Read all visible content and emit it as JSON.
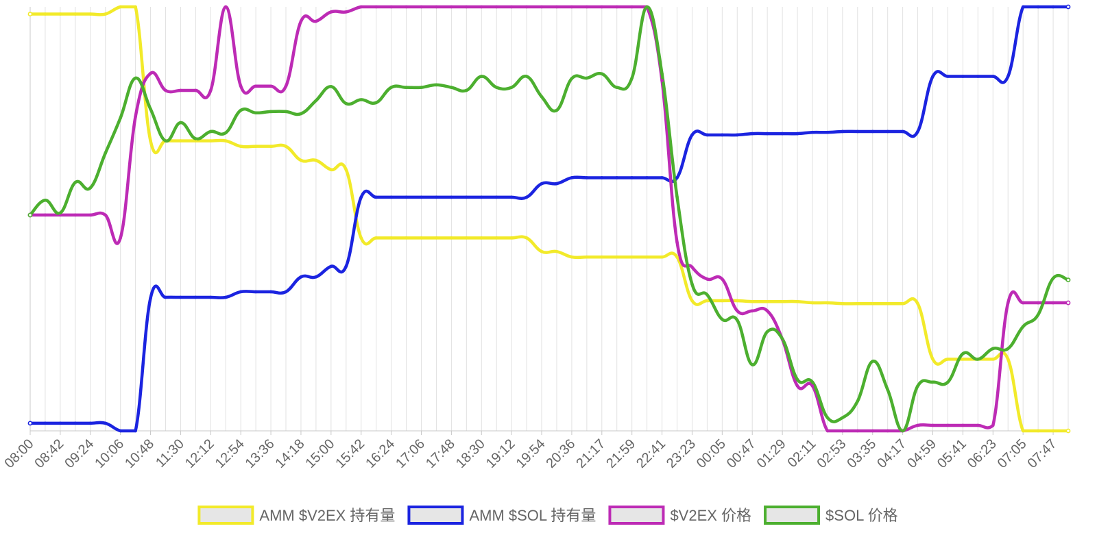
{
  "chart_data": {
    "type": "line",
    "grid": true,
    "legend_position": "bottom",
    "ylim": [
      0,
      100
    ],
    "x": [
      "08:00",
      "08:21",
      "08:42",
      "09:03",
      "09:24",
      "09:45",
      "10:06",
      "10:27",
      "10:48",
      "11:09",
      "11:30",
      "11:51",
      "12:12",
      "12:33",
      "12:54",
      "13:15",
      "13:36",
      "13:57",
      "14:18",
      "14:39",
      "15:00",
      "15:21",
      "15:42",
      "16:03",
      "16:24",
      "16:45",
      "17:06",
      "17:27",
      "17:48",
      "18:09",
      "18:30",
      "18:51",
      "19:12",
      "19:33",
      "19:54",
      "20:15",
      "20:36",
      "20:56",
      "21:17",
      "21:38",
      "21:59",
      "22:20",
      "22:41",
      "23:02",
      "23:23",
      "23:44",
      "00:05",
      "00:26",
      "00:47",
      "01:08",
      "01:29",
      "01:50",
      "02:11",
      "02:32",
      "02:53",
      "03:14",
      "03:35",
      "03:56",
      "04:17",
      "04:38",
      "04:59",
      "05:20",
      "05:41",
      "06:02",
      "06:23",
      "06:44",
      "07:05",
      "07:26",
      "07:47",
      "08:08"
    ],
    "tick_labels": [
      "08:00",
      "08:42",
      "09:24",
      "10:06",
      "10:48",
      "11:30",
      "12:12",
      "12:54",
      "13:36",
      "14:18",
      "15:00",
      "15:42",
      "16:24",
      "17:06",
      "17:48",
      "18:30",
      "19:12",
      "19:54",
      "20:36",
      "21:17",
      "21:59",
      "22:41",
      "23:23",
      "00:05",
      "00:47",
      "01:29",
      "02:11",
      "02:53",
      "03:35",
      "04:17",
      "04:59",
      "05:41",
      "06:23",
      "07:05",
      "07:47"
    ],
    "series": [
      {
        "name": "AMM $V2EX 持有量",
        "color": "#f2ea2a",
        "values": [
          98.3,
          98.3,
          98.3,
          98.3,
          98.3,
          98.3,
          100,
          100,
          68.4,
          68.4,
          68.4,
          68.4,
          68.4,
          68.4,
          67.1,
          67.1,
          67.1,
          67.1,
          63.8,
          63.8,
          61.6,
          61.6,
          45.5,
          45.5,
          45.5,
          45.5,
          45.5,
          45.5,
          45.5,
          45.5,
          45.5,
          45.5,
          45.5,
          45.5,
          42.3,
          42.3,
          41.0,
          41.0,
          41.0,
          41.0,
          41.0,
          41.0,
          41.0,
          41.0,
          30.7,
          30.7,
          30.7,
          30.7,
          30.5,
          30.5,
          30.5,
          30.5,
          30.2,
          30.2,
          30.0,
          30.0,
          30.0,
          30.0,
          30.0,
          30.0,
          16.9,
          16.9,
          16.9,
          16.9,
          16.9,
          16.9,
          0,
          0,
          0,
          0
        ]
      },
      {
        "name": "AMM $SOL 持有量",
        "color": "#1b24e0",
        "values": [
          1.8,
          1.8,
          1.8,
          1.8,
          1.8,
          1.8,
          0,
          0,
          31.3,
          31.5,
          31.5,
          31.5,
          31.5,
          31.5,
          32.8,
          32.8,
          32.8,
          32.8,
          36.3,
          36.3,
          38.8,
          38.8,
          55.1,
          55.1,
          55.1,
          55.1,
          55.1,
          55.1,
          55.1,
          55.1,
          55.1,
          55.1,
          55.1,
          55.1,
          58.3,
          58.3,
          59.7,
          59.7,
          59.7,
          59.7,
          59.7,
          59.7,
          59.7,
          59.7,
          69.8,
          69.8,
          69.8,
          69.8,
          70.1,
          70.1,
          70.1,
          70.1,
          70.4,
          70.4,
          70.6,
          70.6,
          70.6,
          70.6,
          70.6,
          70.6,
          83.6,
          83.6,
          83.6,
          83.6,
          83.6,
          83.6,
          100,
          100,
          100,
          100
        ]
      },
      {
        "name": "$V2EX 价格",
        "color": "#bd2bb5",
        "values": [
          50.9,
          50.9,
          50.9,
          50.9,
          50.9,
          50.9,
          45.5,
          74.1,
          84.3,
          80.3,
          80.3,
          80.3,
          80.3,
          100,
          81.3,
          81.3,
          81.3,
          81.3,
          96.6,
          96.6,
          98.8,
          98.8,
          100,
          100,
          100,
          100,
          100,
          100,
          100,
          100,
          100,
          100,
          100,
          100,
          100,
          100,
          100,
          100,
          100,
          100,
          100,
          100,
          82.6,
          44.5,
          38.6,
          35.8,
          35.8,
          28.3,
          28.3,
          28.3,
          21.6,
          10.6,
          10.6,
          0,
          0,
          0,
          0,
          0,
          0,
          1.3,
          1.3,
          1.3,
          1.3,
          1.3,
          1.3,
          30.2,
          30.2,
          30.2,
          30.2,
          30.2
        ]
      },
      {
        "name": "$SOL 价格",
        "color": "#4caf2f",
        "values": [
          50.9,
          54.4,
          51.4,
          58.6,
          57.3,
          65.5,
          73.8,
          83.2,
          75.9,
          68.4,
          72.7,
          68.9,
          70.6,
          70.3,
          75.6,
          75.0,
          75.3,
          75.3,
          74.8,
          77.9,
          81.2,
          77.2,
          78.1,
          77.4,
          81.0,
          81.0,
          81.0,
          81.6,
          81.0,
          80.3,
          83.6,
          81.0,
          81.0,
          83.6,
          78.8,
          75.6,
          83.1,
          83.2,
          84.2,
          81.0,
          83.2,
          100,
          84.2,
          55.2,
          34.6,
          32.1,
          26.3,
          26.1,
          15.6,
          23.4,
          21.7,
          12.1,
          11.5,
          3.1,
          3.1,
          7.0,
          16.4,
          9.7,
          0,
          10.6,
          11.5,
          11.5,
          18.2,
          16.9,
          19.4,
          19.4,
          24.6,
          27.4,
          36.0,
          35.6
        ]
      }
    ]
  }
}
